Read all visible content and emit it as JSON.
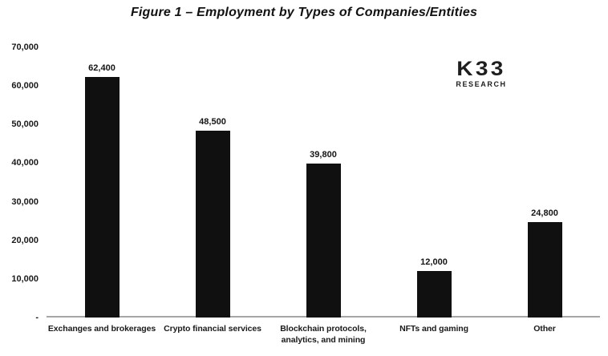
{
  "logo": {
    "k33": "K33",
    "research": "RESEARCH"
  },
  "chart_data": {
    "type": "bar",
    "title": "Figure 1 – Employment by Types of Companies/Entities",
    "categories": [
      "Exchanges and brokerages",
      "Crypto financial services",
      "Blockchain protocols,\nanalytics, and mining",
      "NFTs and gaming",
      "Other"
    ],
    "values": [
      62400,
      48500,
      39800,
      12000,
      24800
    ],
    "value_labels": [
      "62,400",
      "48,500",
      "39,800",
      "12,000",
      "24,800"
    ],
    "xlabel": "",
    "ylabel": "",
    "ylim": [
      0,
      70000
    ],
    "y_ticks": [
      {
        "label": "70,000",
        "value": 70000
      },
      {
        "label": "60,000",
        "value": 60000
      },
      {
        "label": "50,000",
        "value": 50000
      },
      {
        "label": "40,000",
        "value": 40000
      },
      {
        "label": "30,000",
        "value": 30000
      },
      {
        "label": "20,000",
        "value": 20000
      },
      {
        "label": "10,000",
        "value": 10000
      },
      {
        "label": "-",
        "value": 0
      }
    ],
    "grid": false,
    "legend": false,
    "bar_color": "#101010",
    "axis_line_color": "#a6a6a6",
    "text_color": "#1a1a1a"
  }
}
